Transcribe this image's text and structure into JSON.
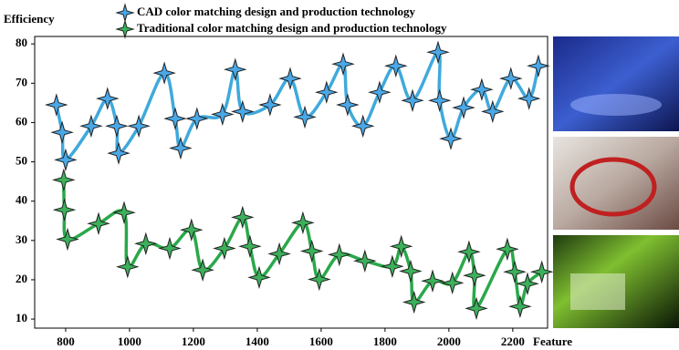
{
  "chart_data": {
    "type": "line",
    "y_label": "Efficiency",
    "x_label": "Feature",
    "xlim": [
      703,
      2309
    ],
    "ylim": [
      7.7,
      81.9
    ],
    "xticks": [
      800,
      1000,
      1200,
      1400,
      1600,
      1800,
      2000,
      2200
    ],
    "yticks": [
      10,
      20,
      30,
      40,
      50,
      60,
      70,
      80
    ],
    "series": [
      {
        "name": "CAD color matching design and production technology",
        "color": "#3fa9dc",
        "marker_color": "#4aa8e8",
        "x": [
          771,
          789,
          800,
          880,
          931,
          960,
          966,
          1029,
          1109,
          1143,
          1160,
          1211,
          1291,
          1331,
          1354,
          1440,
          1503,
          1549,
          1617,
          1669,
          1683,
          1731,
          1783,
          1834,
          1886,
          1966,
          1971,
          2006,
          2046,
          2103,
          2137,
          2194,
          2251,
          2280
        ],
        "values": [
          64.5,
          57.5,
          50.5,
          59.1,
          66.1,
          59.1,
          52.2,
          59.1,
          72.6,
          61,
          53.5,
          61,
          62.1,
          73.5,
          62.8,
          64.5,
          71.2,
          61.4,
          67.7,
          74.9,
          64.5,
          59.1,
          67.7,
          74.4,
          65.6,
          77.9,
          65.6,
          55.9,
          63.8,
          68.4,
          62.8,
          71.2,
          66.1,
          74.4
        ]
      },
      {
        "name": "Traditional color matching design and production technology",
        "color": "#2aa84a",
        "marker_color": "#3cb05a",
        "x": [
          794,
          796,
          806,
          903,
          983,
          994,
          1051,
          1126,
          1194,
          1229,
          1297,
          1354,
          1377,
          1406,
          1469,
          1543,
          1571,
          1594,
          1657,
          1737,
          1823,
          1851,
          1880,
          1891,
          1949,
          2011,
          2063,
          2080,
          2086,
          2183,
          2206,
          2223,
          2246,
          2291
        ],
        "values": [
          45.4,
          37.8,
          30.3,
          34.3,
          37.1,
          23.3,
          29.2,
          28,
          32.7,
          22.5,
          28,
          35.9,
          28.5,
          20.6,
          26.6,
          34.5,
          27.3,
          20.1,
          26.4,
          24.8,
          23.4,
          28.5,
          22.2,
          14.3,
          19.7,
          19.2,
          27.1,
          21.1,
          12.7,
          27.8,
          22,
          13.2,
          19,
          22
        ]
      }
    ]
  }
}
